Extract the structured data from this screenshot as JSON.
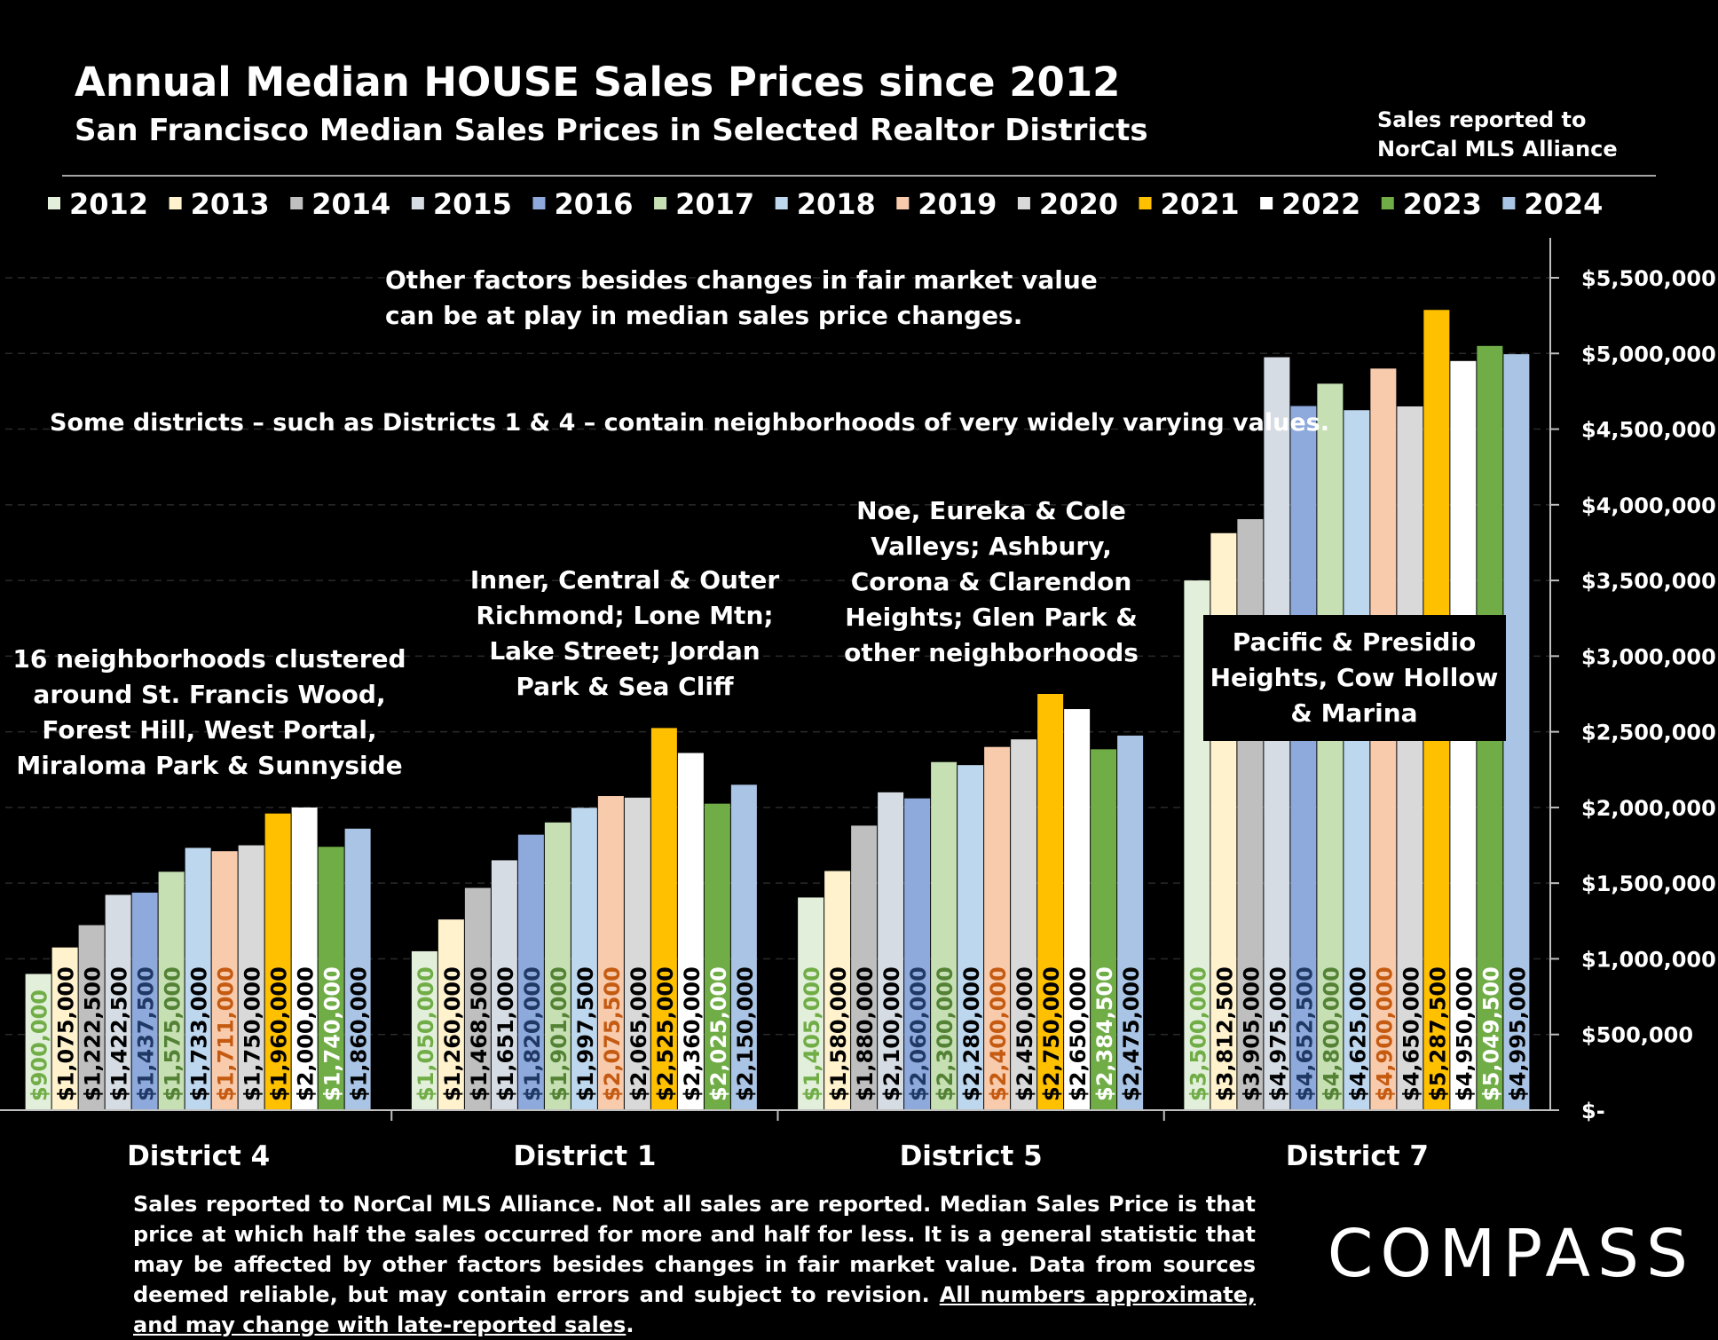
{
  "title": "Annual Median HOUSE Sales Prices since 2012",
  "subtitle": "San Francisco Median Sales Prices in Selected Realtor Districts",
  "source_note": [
    "Sales reported to",
    "NorCal MLS Alliance"
  ],
  "annotations": {
    "top_note": [
      "Other factors besides changes in fair market value",
      "can be at play in median sales price changes."
    ],
    "mid_note": "Some districts – such as Districts 1 & 4 – contain neighborhoods of very widely varying values.",
    "district4": [
      "16 neighborhoods clustered",
      "around St. Francis Wood,",
      "Forest Hill, West Portal,",
      "Miraloma Park & Sunnyside"
    ],
    "district1": [
      "Inner, Central & Outer",
      "Richmond; Lone Mtn;",
      "Lake Street; Jordan",
      "Park & Sea Cliff"
    ],
    "district5": [
      "Noe, Eureka & Cole",
      "Valleys; Ashbury,",
      "Corona & Clarendon",
      "Heights; Glen Park &",
      "other neighborhoods"
    ],
    "district7": [
      "Pacific & Presidio",
      "Heights, Cow Hollow",
      "& Marina"
    ]
  },
  "footnote": {
    "main": "Sales reported to NorCal MLS Alliance. Not all sales are reported. Median Sales Price is that price at which half the sales occurred for more and half for less. It is a general statistic that may be affected by other factors besides changes in fair market value. Data from sources deemed reliable, but may contain errors and subject to revision. ",
    "underlined": "All numbers approximate, and may change with late-reported sales",
    "end": "."
  },
  "logo_text": "COMPASS",
  "chart_data": {
    "type": "bar",
    "categories": [
      "District 4",
      "District 1",
      "District 5",
      "District 7"
    ],
    "ylim": [
      0,
      5500000
    ],
    "y_ticks": [
      {
        "value": 0,
        "label": "$-"
      },
      {
        "value": 500000,
        "label": "$500,000"
      },
      {
        "value": 1000000,
        "label": "$1,000,000"
      },
      {
        "value": 1500000,
        "label": "$1,500,000"
      },
      {
        "value": 2000000,
        "label": "$2,000,000"
      },
      {
        "value": 2500000,
        "label": "$2,500,000"
      },
      {
        "value": 3000000,
        "label": "$3,000,000"
      },
      {
        "value": 3500000,
        "label": "$3,500,000"
      },
      {
        "value": 4000000,
        "label": "$4,000,000"
      },
      {
        "value": 4500000,
        "label": "$4,500,000"
      },
      {
        "value": 5000000,
        "label": "$5,000,000"
      },
      {
        "value": 5500000,
        "label": "$5,500,000"
      }
    ],
    "y_axis_position": "right",
    "legend_position": "top",
    "grid": "horizontal",
    "series": [
      {
        "name": "2012",
        "color": "#e2efda",
        "label_color": "#70ad47",
        "values": [
          900000,
          1050000,
          1405000,
          3500000
        ],
        "labels": [
          "$900,000",
          "$1,050,000",
          "$1,405,000",
          "$3,500,000"
        ]
      },
      {
        "name": "2013",
        "color": "#fff2cc",
        "label_color": "#000000",
        "values": [
          1075000,
          1260000,
          1580000,
          3812500
        ],
        "labels": [
          "$1,075,000",
          "$1,260,000",
          "$1,580,000",
          "$3,812,500"
        ]
      },
      {
        "name": "2014",
        "color": "#bfbfbf",
        "label_color": "#000000",
        "values": [
          1222500,
          1468500,
          1880000,
          3905000
        ],
        "labels": [
          "$1,222,500",
          "$1,468,500",
          "$1,880,000",
          "$3,905,000"
        ]
      },
      {
        "name": "2015",
        "color": "#d6dce4",
        "label_color": "#000000",
        "values": [
          1422500,
          1651000,
          2100000,
          4975000
        ],
        "labels": [
          "$1,422,500",
          "$1,651,000",
          "$2,100,000",
          "$4,975,000"
        ]
      },
      {
        "name": "2016",
        "color": "#8ea9db",
        "label_color": "#1f3864",
        "values": [
          1437500,
          1820000,
          2060000,
          4652500
        ],
        "labels": [
          "$1,437,500",
          "$1,820,000",
          "$2,060,000",
          "$4,652,500"
        ]
      },
      {
        "name": "2017",
        "color": "#c6e0b4",
        "label_color": "#548235",
        "values": [
          1575000,
          1901000,
          2300000,
          4800000
        ],
        "labels": [
          "$1,575,000",
          "$1,901,000",
          "$2,300,000",
          "$4,800,000"
        ]
      },
      {
        "name": "2018",
        "color": "#bdd7ee",
        "label_color": "#000000",
        "values": [
          1733000,
          1997500,
          2280000,
          4625000
        ],
        "labels": [
          "$1,733,000",
          "$1,997,500",
          "$2,280,000",
          "$4,625,000"
        ]
      },
      {
        "name": "2019",
        "color": "#f8cbad",
        "label_color": "#c55a11",
        "values": [
          1711000,
          2075500,
          2400000,
          4900000
        ],
        "labels": [
          "$1,711,000",
          "$2,075,500",
          "$2,400,000",
          "$4,900,000"
        ]
      },
      {
        "name": "2020",
        "color": "#d9d9d9",
        "label_color": "#000000",
        "values": [
          1750000,
          2065000,
          2450000,
          4650000
        ],
        "labels": [
          "$1,750,000",
          "$2,065,000",
          "$2,450,000",
          "$4,650,000"
        ]
      },
      {
        "name": "2021",
        "color": "#ffc000",
        "label_color": "#000000",
        "values": [
          1960000,
          2525000,
          2750000,
          5287500
        ],
        "labels": [
          "$1,960,000",
          "$2,525,000",
          "$2,750,000",
          "$5,287,500"
        ]
      },
      {
        "name": "2022",
        "color": "#ffffff",
        "label_color": "#000000",
        "values": [
          2000000,
          2360000,
          2650000,
          4950000
        ],
        "labels": [
          "$2,000,000",
          "$2,360,000",
          "$2,650,000",
          "$4,950,000"
        ]
      },
      {
        "name": "2023",
        "color": "#70ad47",
        "label_color": "#ffffff",
        "values": [
          1740000,
          2025000,
          2384500,
          5049500
        ],
        "labels": [
          "$1,740,000",
          "$2,025,000",
          "$2,384,500",
          "$5,049,500"
        ]
      },
      {
        "name": "2024",
        "color": "#a9c4e4",
        "label_color": "#000000",
        "values": [
          1860000,
          2150000,
          2475000,
          4995000
        ],
        "labels": [
          "$1,860,000",
          "$2,150,000",
          "$2,475,000",
          "$4,995,000"
        ]
      }
    ]
  }
}
